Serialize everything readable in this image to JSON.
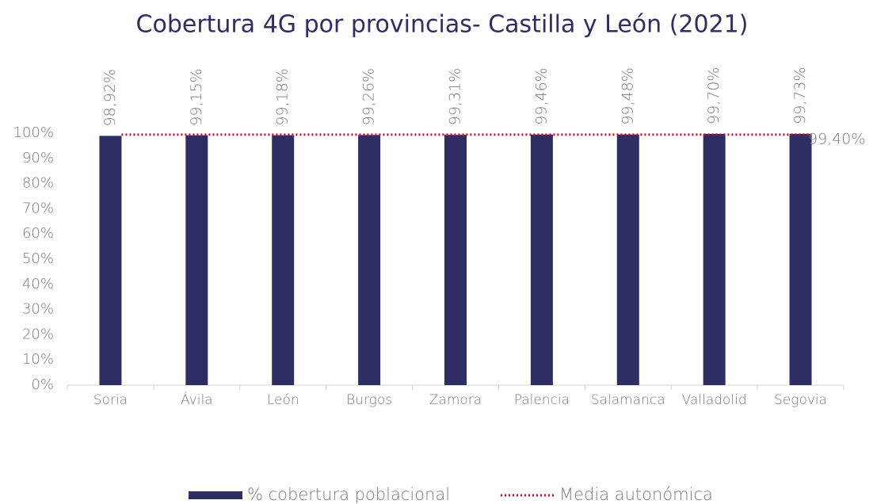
{
  "chart_data": {
    "type": "bar",
    "title": "Cobertura 4G por provincias- Castilla y León (2021)",
    "categories": [
      "Soria",
      "Ávila",
      "León",
      "Burgos",
      "Zamora",
      "Palencia",
      "Salamanca",
      "Valladolid",
      "Segovia"
    ],
    "series": [
      {
        "name": "% cobertura poblacional",
        "color": "#2e2d64",
        "values": [
          98.92,
          99.15,
          99.18,
          99.26,
          99.31,
          99.46,
          99.48,
          99.7,
          99.73
        ],
        "value_labels": [
          "98,92%",
          "99,15%",
          "99,18%",
          "99,26%",
          "99,31%",
          "99,46%",
          "99,48%",
          "99,70%",
          "99,73%"
        ]
      }
    ],
    "reference": {
      "name": "Media autonómica",
      "value": 99.4,
      "value_label": "99,40%",
      "color": "#c8102e",
      "style": "dotted"
    },
    "ylim": [
      0,
      100
    ],
    "yticks": [
      {
        "value": 0,
        "label": "0%"
      },
      {
        "value": 10,
        "label": "10%"
      },
      {
        "value": 20,
        "label": "20%"
      },
      {
        "value": 30,
        "label": "30%"
      },
      {
        "value": 40,
        "label": "40%"
      },
      {
        "value": 50,
        "label": "50%"
      },
      {
        "value": 60,
        "label": "60%"
      },
      {
        "value": 70,
        "label": "70%"
      },
      {
        "value": 80,
        "label": "80%"
      },
      {
        "value": 90,
        "label": "90%"
      },
      {
        "value": 100,
        "label": "100%"
      }
    ],
    "grid": false,
    "legend": "bottom"
  }
}
